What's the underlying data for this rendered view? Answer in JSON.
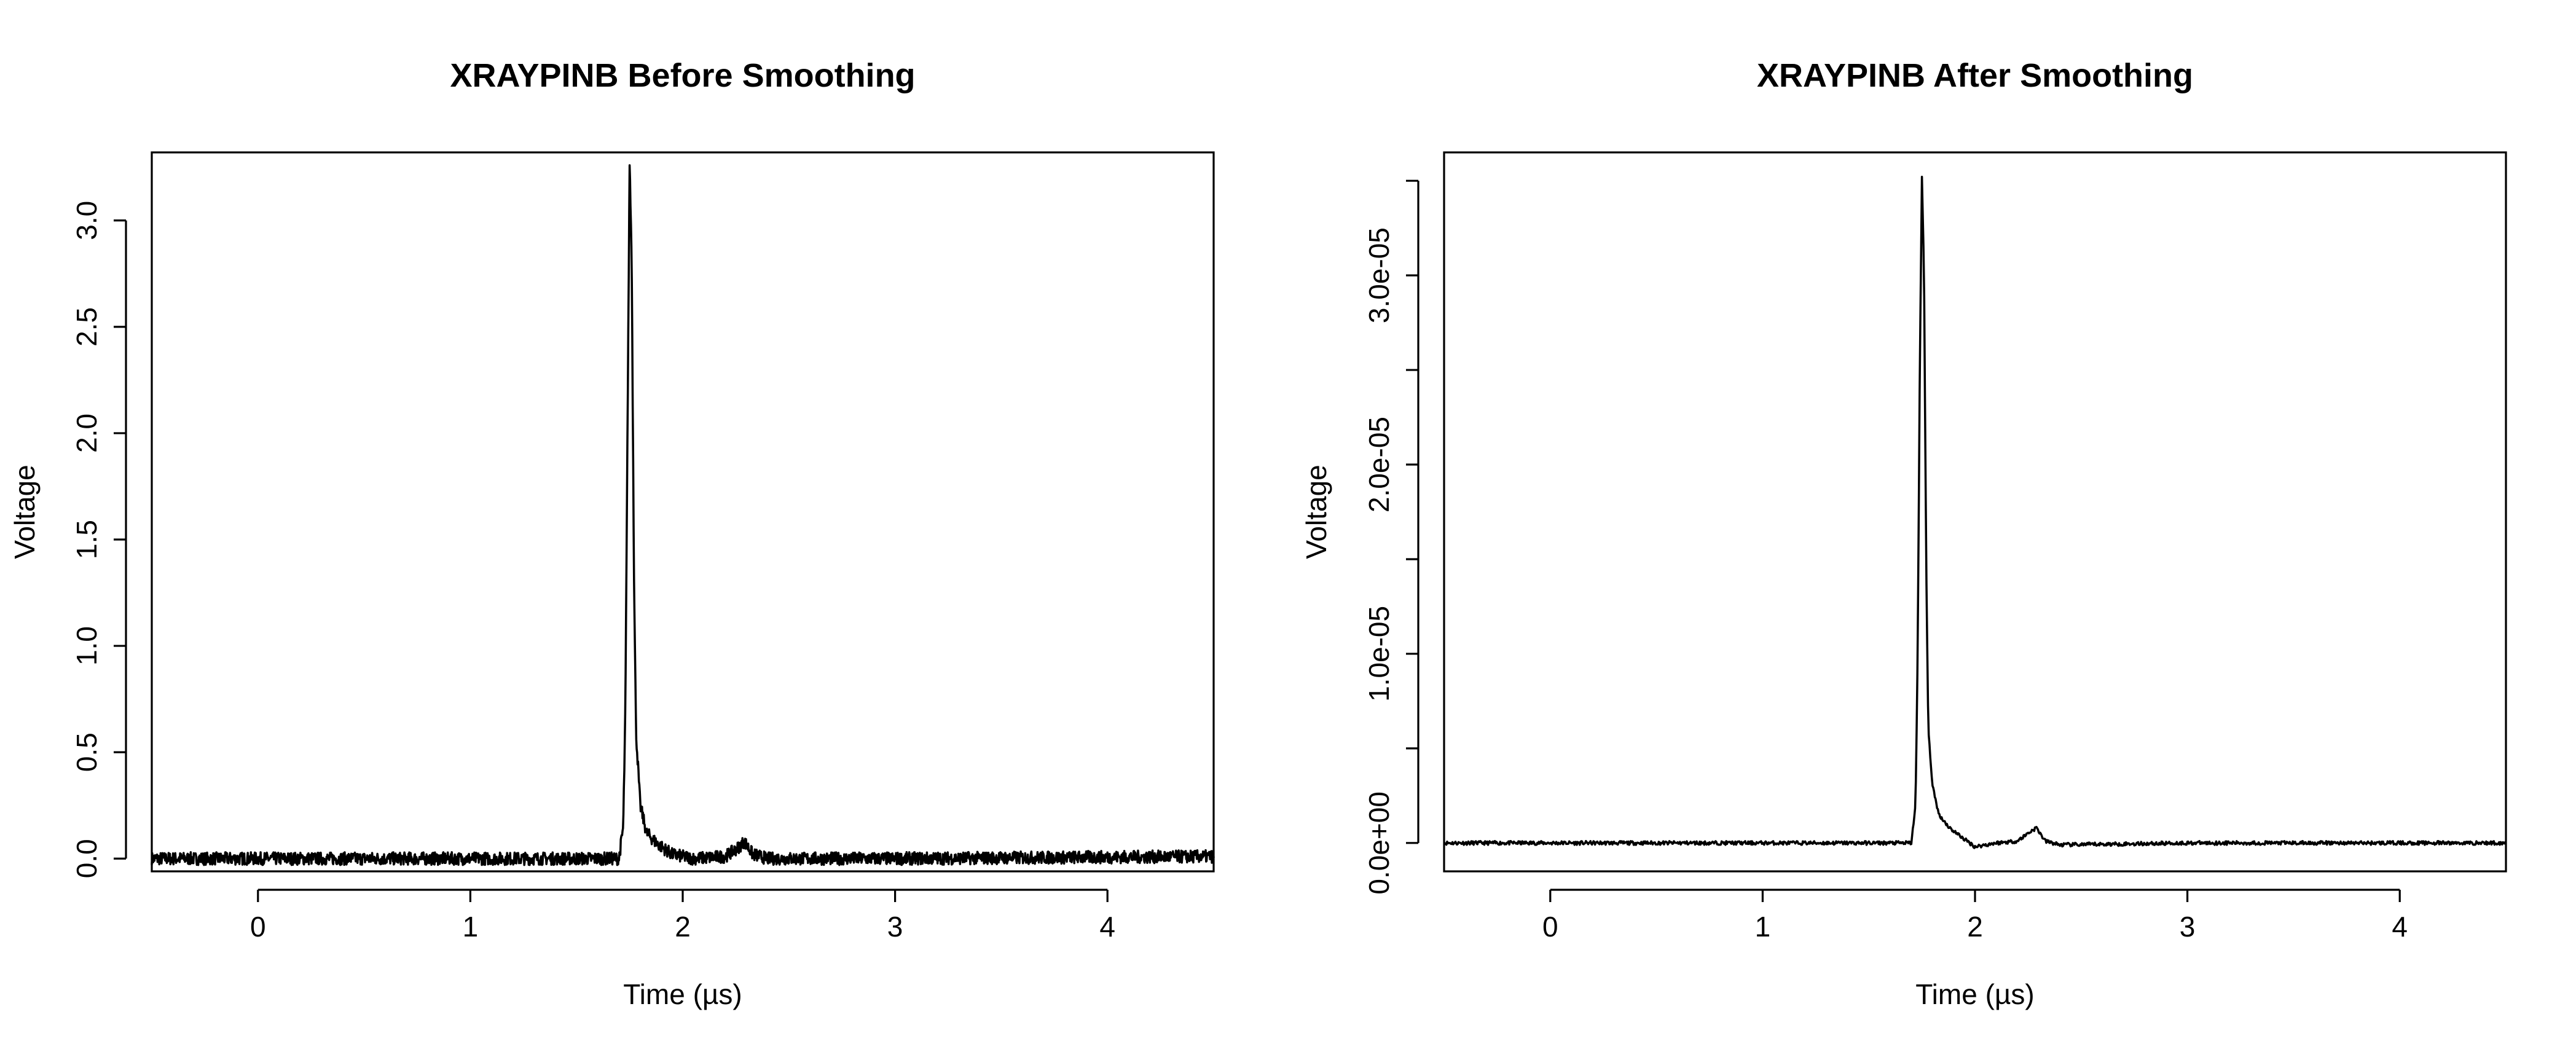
{
  "chart_data": [
    {
      "type": "line",
      "title": "XRAYPINB Before Smoothing",
      "xlabel": "Time (µs)",
      "ylabel": "Voltage",
      "xlim": [
        -0.5,
        4.5
      ],
      "ylim": [
        -0.06,
        3.32
      ],
      "xticks": [
        "0",
        "1",
        "2",
        "3",
        "4"
      ],
      "yticks": [
        "0.0",
        "0.5",
        "1.0",
        "1.5",
        "2.0",
        "2.5",
        "3.0"
      ],
      "grid": false,
      "legend": "none",
      "line_color": "#000000",
      "noise_amplitude": 0.03,
      "series": [
        {
          "x": [
            -0.5,
            1.5,
            1.7,
            1.72,
            1.73,
            1.74,
            1.75,
            1.76,
            1.77,
            1.78,
            1.8,
            1.83,
            1.88,
            1.95,
            2.05,
            2.2,
            2.26,
            2.29,
            2.33,
            2.4,
            3.0,
            4.5
          ],
          "values": [
            0.0,
            0.0,
            0.0,
            0.15,
            0.7,
            2.0,
            3.28,
            2.8,
            1.4,
            0.6,
            0.25,
            0.12,
            0.07,
            0.02,
            0.0,
            0.01,
            0.05,
            0.08,
            0.02,
            0.0,
            0.0,
            0.01
          ]
        }
      ]
    },
    {
      "type": "line",
      "title": "XRAYPINB After Smoothing",
      "xlabel": "Time (µs)",
      "ylabel": "Voltage",
      "xlim": [
        -0.5,
        4.5
      ],
      "ylim": [
        -1.5e-06,
        3.65e-05
      ],
      "xticks": [
        "0",
        "1",
        "2",
        "3",
        "4"
      ],
      "yticks": [
        "0.0e+00",
        "1.0e-05",
        "2.0e-05",
        "3.0e-05"
      ],
      "minor_yticks": [
        5e-06,
        1.5e-05,
        2.5e-05,
        3.5e-05
      ],
      "grid": false,
      "legend": "none",
      "line_color": "#000000",
      "noise_amplitude": 1e-07,
      "series": [
        {
          "x": [
            -0.5,
            1.5,
            1.7,
            1.72,
            1.73,
            1.74,
            1.75,
            1.76,
            1.77,
            1.78,
            1.8,
            1.83,
            1.88,
            1.95,
            2.0,
            2.1,
            2.2,
            2.26,
            2.29,
            2.33,
            2.4,
            3.0,
            4.5
          ],
          "values": [
            0.0,
            0.0,
            0.0,
            2e-06,
            1e-05,
            2.5e-05,
            3.52e-05,
            3e-05,
            1.5e-05,
            6e-06,
            3e-06,
            1.5e-06,
            8e-07,
            2e-07,
            -2e-07,
            0.0,
            1e-07,
            6e-07,
            8e-07,
            1e-07,
            -1e-07,
            0.0,
            0.0
          ]
        }
      ]
    }
  ]
}
